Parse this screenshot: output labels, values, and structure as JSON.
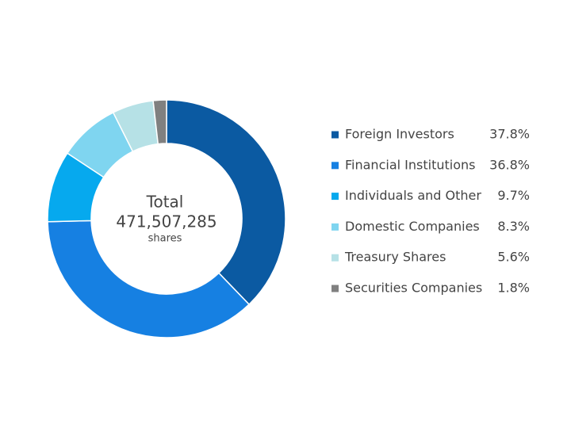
{
  "chart_data": {
    "type": "donut",
    "center_title": "Total",
    "center_value": "471,507,285",
    "center_unit": "shares",
    "categories": [
      "Foreign Investors",
      "Financial Institutions",
      "Individuals and Other",
      "Domestic Companies",
      "Treasury Shares",
      "Securities Companies"
    ],
    "values": [
      37.8,
      36.8,
      9.7,
      8.3,
      5.6,
      1.8
    ],
    "value_labels": [
      "37.8%",
      "36.8%",
      "9.7%",
      "8.3%",
      "5.6%",
      "1.8%"
    ],
    "colors": [
      "#0b5aa2",
      "#1680e2",
      "#06a9ee",
      "#7fd5f0",
      "#b6e1e6",
      "#808080"
    ],
    "legend": "right"
  }
}
